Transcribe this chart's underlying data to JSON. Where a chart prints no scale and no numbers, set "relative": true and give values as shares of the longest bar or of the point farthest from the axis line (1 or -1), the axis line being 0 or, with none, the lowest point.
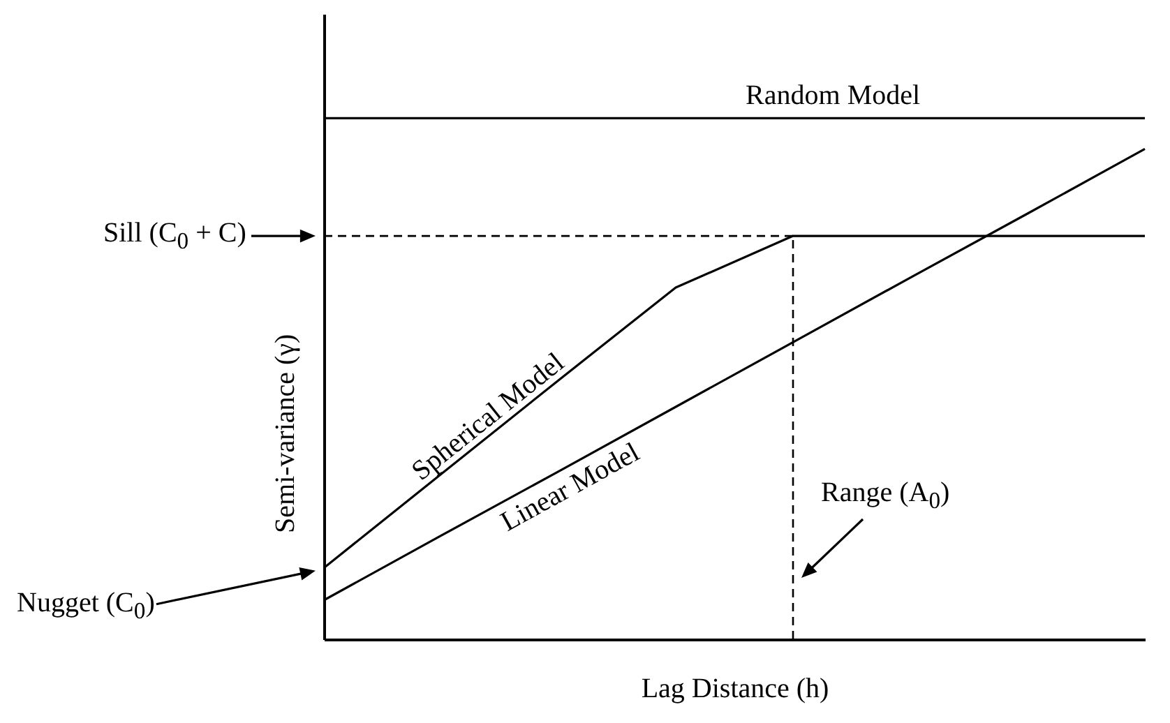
{
  "chart_data": {
    "type": "line",
    "relative": true,
    "xlabel": "Lag Distance (h)",
    "ylabel": "Semi-variance (γ)",
    "tick_labels": false,
    "marker": "none",
    "categories": [
      null,
      null,
      null,
      null,
      null,
      null,
      null,
      null
    ],
    "series": [
      {
        "name": "Random Model",
        "color": "#000000",
        "values": [
          1,
          1,
          1,
          1,
          1,
          1,
          1,
          1
        ]
      },
      {
        "name": "Spherical Model",
        "color": "#000000",
        "values": [
          0.137,
          0.317,
          0.497,
          0.675,
          0.774,
          0.774,
          0.774,
          0.774
        ]
      },
      {
        "name": "Linear Model",
        "color": "#000000",
        "values": [
          0.075,
          0.199,
          0.322,
          0.446,
          0.57,
          0.694,
          0.817,
          0.941
        ]
      }
    ],
    "ref_lines": [
      {
        "axis": "y",
        "value": 0.774,
        "label": "Sill (C$_{0}$ + C)",
        "line_style": "dashed"
      },
      {
        "axis": "x",
        "label": "Range (A$_{0}$)",
        "line_style": "dashed"
      }
    ],
    "annotations": [
      "Nugget (C$_{0}$)"
    ]
  }
}
